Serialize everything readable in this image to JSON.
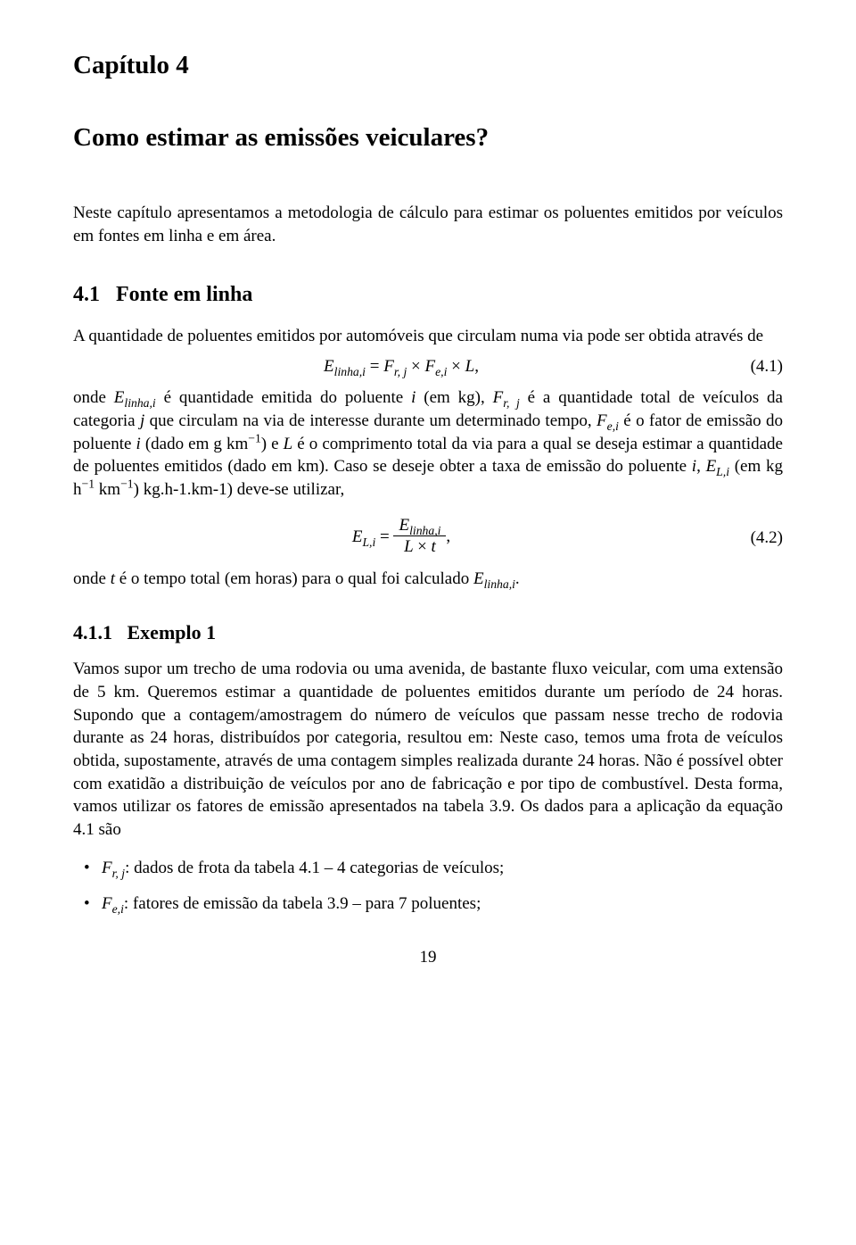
{
  "chapter_label": "Capítulo 4",
  "chapter_title": "Como estimar as emissões veiculares?",
  "intro": "Neste capítulo apresentamos a metodologia de cálculo para estimar os poluentes emitidos por veículos em fontes em linha e em área.",
  "section_4_1": {
    "number": "4.1",
    "title": "Fonte em linha",
    "p1": "A quantidade de poluentes emitidos por automóveis que circulam numa via pode ser obtida através de",
    "eq1_html": "E<sub>linha,i</sub> <span class='roman'>=</span> F<sub>r, j</sub> <span class='roman'>×</span> F<sub>e,i</sub> <span class='roman'>×</span> L<span class='roman'>,</span>",
    "eq1_num": "(4.1)",
    "p2_html": "onde <span class='ital'>E<sub>linha,i</sub></span> é quantidade emitida do poluente <span class='ital'>i</span> (em kg), <span class='ital'>F<sub>r, j</sub></span> é a quantidade total de veículos da categoria <span class='ital'>j</span> que circulam na via de interesse durante um determinado tempo, <span class='ital'>F<sub>e,i</sub></span> é o fator de emissão do poluente <span class='ital'>i</span> (dado em g km<sup>−1</sup>) e <span class='ital'>L</span> é o comprimento total da via para a qual se deseja estimar a quantidade de poluentes emitidos (dado em km). Caso se deseje obter a taxa de emissão do poluente <span class='ital'>i</span>, <span class='ital'>E<sub>L,i</sub></span> (em kg h<sup>−1</sup> km<sup>−1</sup>) kg.h-1.km-1) deve-se utilizar,",
    "eq2_lhs_html": "E<sub>L,i</sub> <span class='roman'>=</span> ",
    "eq2_frac_num_html": "E<sub>linha,i</sub>",
    "eq2_frac_den_html": "L <span class='roman'>×</span> t",
    "eq2_tail": ",",
    "eq2_num": "(4.2)",
    "p3_html": "onde <span class='ital'>t</span> é o tempo total (em horas) para o qual foi calculado <span class='ital'>E<sub>linha,i</sub></span>."
  },
  "section_4_1_1": {
    "number": "4.1.1",
    "title": "Exemplo 1",
    "p1": "Vamos supor um trecho de uma rodovia ou uma avenida, de bastante fluxo veicular, com uma extensão de 5 km. Queremos estimar a quantidade de poluentes emitidos durante um período de 24 horas. Supondo que a contagem/amostragem do número de veículos que passam nesse trecho de rodovia durante as 24 horas, distribuídos por categoria, resultou em: Neste caso, temos uma frota de veículos obtida, supostamente, através de uma contagem simples realizada durante 24 horas. Não é possível obter com exatidão a distribuição de veículos por ano de fabricação e por tipo de combustível. Desta forma, vamos utilizar os fatores de emissão apresentados na tabela 3.9. Os dados para a aplicação da equação 4.1 são",
    "bullets": [
      "<span class='ital'>F<sub>r, j</sub></span>: dados de frota da tabela 4.1 – 4 categorias de veículos;",
      "<span class='ital'>F<sub>e,i</sub></span>: fatores de emissão da tabela 3.9 – para 7 poluentes;"
    ]
  },
  "page_number": "19"
}
